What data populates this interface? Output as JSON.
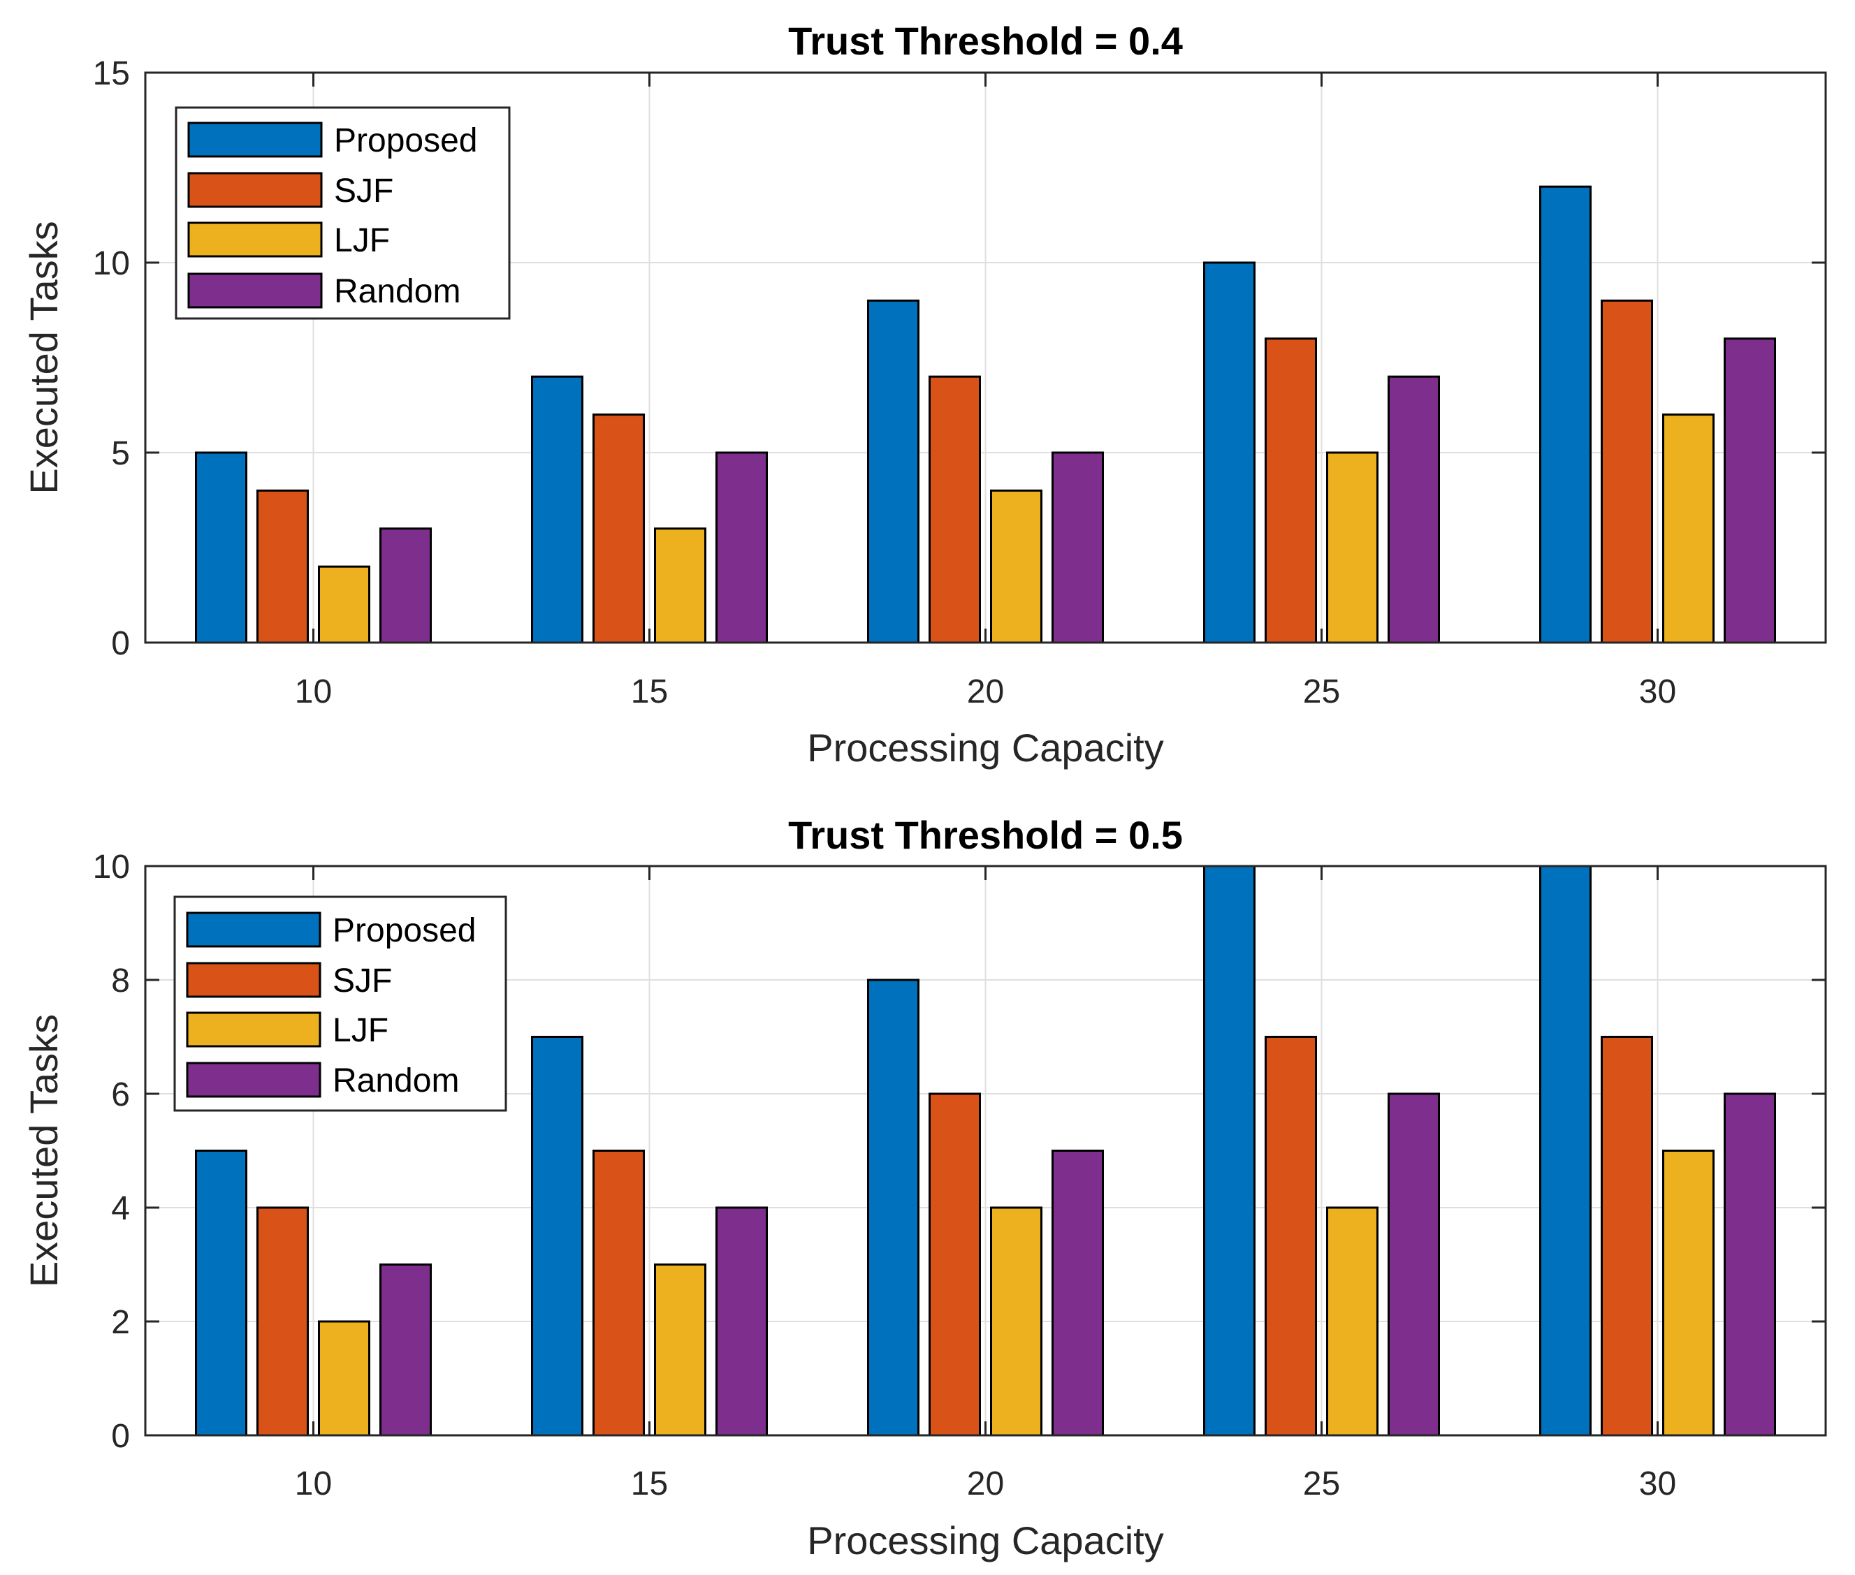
{
  "chart_data": [
    {
      "type": "bar",
      "title": "Trust Threshold = 0.4",
      "xlabel": "Processing Capacity",
      "ylabel": "Executed Tasks",
      "categories": [
        "10",
        "15",
        "20",
        "25",
        "30"
      ],
      "ylim": [
        0,
        15
      ],
      "yticks": [
        "0",
        "5",
        "10",
        "15"
      ],
      "grid": true,
      "legend_position": "top-left",
      "series": [
        {
          "name": "Proposed",
          "color": "#0072BD",
          "values": [
            5,
            7,
            9,
            10,
            12
          ]
        },
        {
          "name": "SJF",
          "color": "#D95319",
          "values": [
            4,
            6,
            7,
            8,
            9
          ]
        },
        {
          "name": "LJF",
          "color": "#EDB120",
          "values": [
            2,
            3,
            4,
            5,
            6
          ]
        },
        {
          "name": "Random",
          "color": "#7E2F8E",
          "values": [
            3,
            5,
            5,
            7,
            8
          ]
        }
      ]
    },
    {
      "type": "bar",
      "title": "Trust Threshold = 0.5",
      "xlabel": "Processing Capacity",
      "ylabel": "Executed Tasks",
      "categories": [
        "10",
        "15",
        "20",
        "25",
        "30"
      ],
      "ylim": [
        0,
        10
      ],
      "yticks": [
        "0",
        "2",
        "4",
        "6",
        "8",
        "10"
      ],
      "grid": true,
      "legend_position": "top-left",
      "series": [
        {
          "name": "Proposed",
          "color": "#0072BD",
          "values": [
            5,
            7,
            8,
            10,
            10
          ]
        },
        {
          "name": "SJF",
          "color": "#D95319",
          "values": [
            4,
            5,
            6,
            7,
            7
          ]
        },
        {
          "name": "LJF",
          "color": "#EDB120",
          "values": [
            2,
            3,
            4,
            4,
            5
          ]
        },
        {
          "name": "Random",
          "color": "#7E2F8E",
          "values": [
            3,
            4,
            5,
            6,
            6
          ]
        }
      ]
    }
  ]
}
